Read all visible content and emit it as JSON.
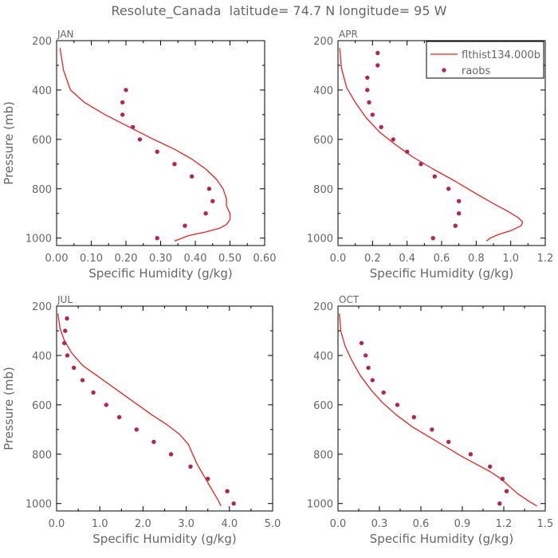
{
  "figure": {
    "title": "Resolute_Canada  latitude= 74.7 N longitude= 95 W"
  },
  "legend": {
    "line_label": "flthist134.000b",
    "dots_label": "raobs",
    "placement": "top-right of APR panel"
  },
  "colors": {
    "line": "#e8231e",
    "dots": "#b5264e",
    "text": "#666666",
    "frame": "#000000"
  },
  "chart_data": [
    {
      "type": "line",
      "panel_label": "JAN",
      "xlabel": "Specific Humidity (g/kg)",
      "ylabel": "Pressure (mb)",
      "xlim": [
        0,
        0.6
      ],
      "ylim": [
        1030,
        200
      ],
      "xticks": [
        "0.00",
        "0.10",
        "0.20",
        "0.30",
        "0.40",
        "0.50",
        "0.60"
      ],
      "yticks": [
        "200",
        "400",
        "600",
        "800",
        "1000"
      ],
      "series": [
        {
          "name": "flthist134.000b",
          "style": "line",
          "x": [
            0.34,
            0.38,
            0.43,
            0.47,
            0.49,
            0.5,
            0.5,
            0.49,
            0.49,
            0.48,
            0.46,
            0.43,
            0.39,
            0.34,
            0.28,
            0.21,
            0.14,
            0.08,
            0.04,
            0.02,
            0.01
          ],
          "y": [
            1012,
            990,
            975,
            960,
            945,
            925,
            900,
            870,
            840,
            800,
            760,
            720,
            680,
            640,
            600,
            550,
            500,
            450,
            400,
            320,
            230
          ]
        },
        {
          "name": "raobs",
          "style": "dots",
          "x": [
            0.29,
            0.37,
            0.43,
            0.45,
            0.44,
            0.39,
            0.34,
            0.29,
            0.24,
            0.22,
            0.19,
            0.19,
            0.2
          ],
          "y": [
            1000,
            950,
            900,
            850,
            800,
            750,
            700,
            650,
            600,
            550,
            500,
            450,
            400
          ]
        }
      ]
    },
    {
      "type": "line",
      "panel_label": "APR",
      "xlabel": "Specific Humidity (g/kg)",
      "ylabel": "",
      "xlim": [
        0,
        1.2
      ],
      "ylim": [
        1030,
        200
      ],
      "xticks": [
        "0.0",
        "0.2",
        "0.4",
        "0.6",
        "0.8",
        "1.0",
        "1.2"
      ],
      "yticks": [
        "200",
        "400",
        "600",
        "800",
        "1000"
      ],
      "series": [
        {
          "name": "flthist134.000b",
          "style": "line",
          "x": [
            0.86,
            0.88,
            0.93,
            1.0,
            1.06,
            1.07,
            1.04,
            0.98,
            0.9,
            0.8,
            0.68,
            0.55,
            0.43,
            0.33,
            0.24,
            0.16,
            0.1,
            0.05,
            0.02,
            0.01
          ],
          "y": [
            1012,
            1000,
            985,
            970,
            950,
            935,
            915,
            890,
            860,
            820,
            770,
            720,
            670,
            620,
            570,
            510,
            450,
            390,
            310,
            230
          ]
        },
        {
          "name": "raobs",
          "style": "dots",
          "x": [
            0.55,
            0.68,
            0.7,
            0.7,
            0.64,
            0.56,
            0.48,
            0.4,
            0.32,
            0.25,
            0.2,
            0.18,
            0.17,
            0.17,
            0.23,
            0.23
          ],
          "y": [
            1000,
            950,
            900,
            850,
            800,
            750,
            700,
            650,
            600,
            550,
            500,
            450,
            400,
            350,
            300,
            250
          ]
        }
      ]
    },
    {
      "type": "line",
      "panel_label": "JUL",
      "xlabel": "Specific Humidity (g/kg)",
      "ylabel": "Pressure (mb)",
      "xlim": [
        0,
        5.0
      ],
      "ylim": [
        1030,
        200
      ],
      "xticks": [
        "0.0",
        "1.0",
        "2.0",
        "3.0",
        "4.0",
        "5.0"
      ],
      "yticks": [
        "200",
        "400",
        "600",
        "800",
        "1000"
      ],
      "series": [
        {
          "name": "flthist134.000b",
          "style": "line",
          "x": [
            3.8,
            3.75,
            3.65,
            3.55,
            3.45,
            3.35,
            3.25,
            3.15,
            3.05,
            2.85,
            2.55,
            2.2,
            1.8,
            1.4,
            1.0,
            0.6,
            0.35,
            0.18,
            0.08,
            0.03
          ],
          "y": [
            1010,
            990,
            960,
            930,
            900,
            870,
            840,
            800,
            760,
            720,
            680,
            640,
            590,
            540,
            490,
            440,
            390,
            340,
            290,
            230
          ]
        },
        {
          "name": "raobs",
          "style": "dots",
          "x": [
            4.1,
            3.95,
            3.5,
            3.1,
            2.65,
            2.25,
            1.85,
            1.45,
            1.15,
            0.85,
            0.6,
            0.4,
            0.25,
            0.18,
            0.2,
            0.24
          ],
          "y": [
            1000,
            950,
            900,
            850,
            800,
            750,
            700,
            650,
            600,
            550,
            500,
            450,
            400,
            350,
            300,
            250
          ]
        }
      ]
    },
    {
      "type": "line",
      "panel_label": "OCT",
      "xlabel": "Specific Humidity (g/kg)",
      "ylabel": "",
      "xlim": [
        0,
        1.5
      ],
      "ylim": [
        1030,
        200
      ],
      "xticks": [
        "0.0",
        "0.3",
        "0.6",
        "0.9",
        "1.2",
        "1.5"
      ],
      "yticks": [
        "200",
        "400",
        "600",
        "800",
        "1000"
      ],
      "series": [
        {
          "name": "flthist134.000b",
          "style": "line",
          "x": [
            1.44,
            1.38,
            1.3,
            1.24,
            1.18,
            1.1,
            1.0,
            0.9,
            0.78,
            0.66,
            0.54,
            0.42,
            0.32,
            0.24,
            0.16,
            0.1,
            0.05,
            0.02,
            0.01
          ],
          "y": [
            1010,
            990,
            960,
            930,
            900,
            870,
            840,
            810,
            770,
            730,
            690,
            640,
            590,
            540,
            480,
            420,
            360,
            300,
            230
          ]
        },
        {
          "name": "raobs",
          "style": "dots",
          "x": [
            1.17,
            1.22,
            1.19,
            1.1,
            0.96,
            0.8,
            0.68,
            0.55,
            0.43,
            0.33,
            0.25,
            0.22,
            0.2,
            0.17
          ],
          "y": [
            1000,
            950,
            900,
            850,
            800,
            750,
            700,
            650,
            600,
            550,
            500,
            450,
            400,
            350
          ]
        }
      ]
    }
  ]
}
